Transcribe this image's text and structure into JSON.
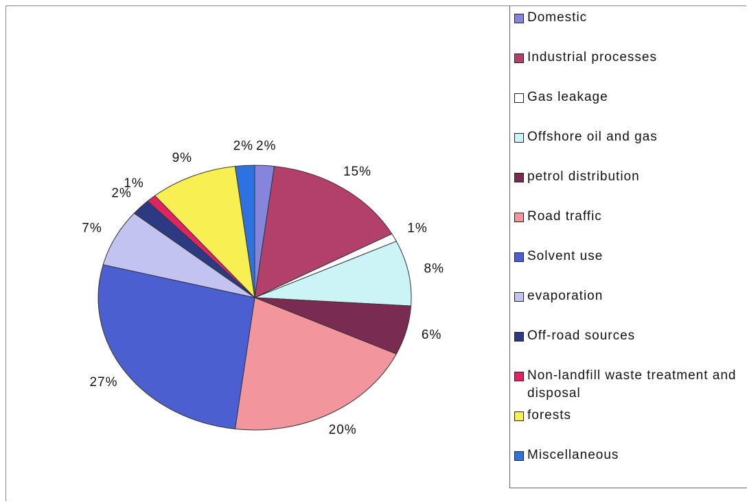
{
  "chart_data": {
    "type": "pie",
    "categories": [
      "Domestic",
      "Industrial processes",
      "Gas leakage",
      "Offshore oil and gas",
      "petrol distribution",
      "Road traffic",
      "Solvent use",
      "evaporation",
      "Off-road sources",
      "Non-landfill waste treatment and disposal",
      "forests",
      "Miscellaneous"
    ],
    "values": [
      2,
      15,
      1,
      8,
      6,
      20,
      27,
      7,
      2,
      1,
      9,
      2
    ],
    "value_labels": [
      "2%",
      "15%",
      "1%",
      "8%",
      "6%",
      "20%",
      "27%",
      "7%",
      "2%",
      "1%",
      "9%",
      "2%"
    ],
    "colors": [
      "#8585dc",
      "#b3406b",
      "#ffffff",
      "#ccf3f6",
      "#7a2b52",
      "#f2959d",
      "#4b5fd1",
      "#c3c3f2",
      "#2b3a82",
      "#e0245f",
      "#f8f052",
      "#2e72e2"
    ],
    "legend": "right"
  }
}
